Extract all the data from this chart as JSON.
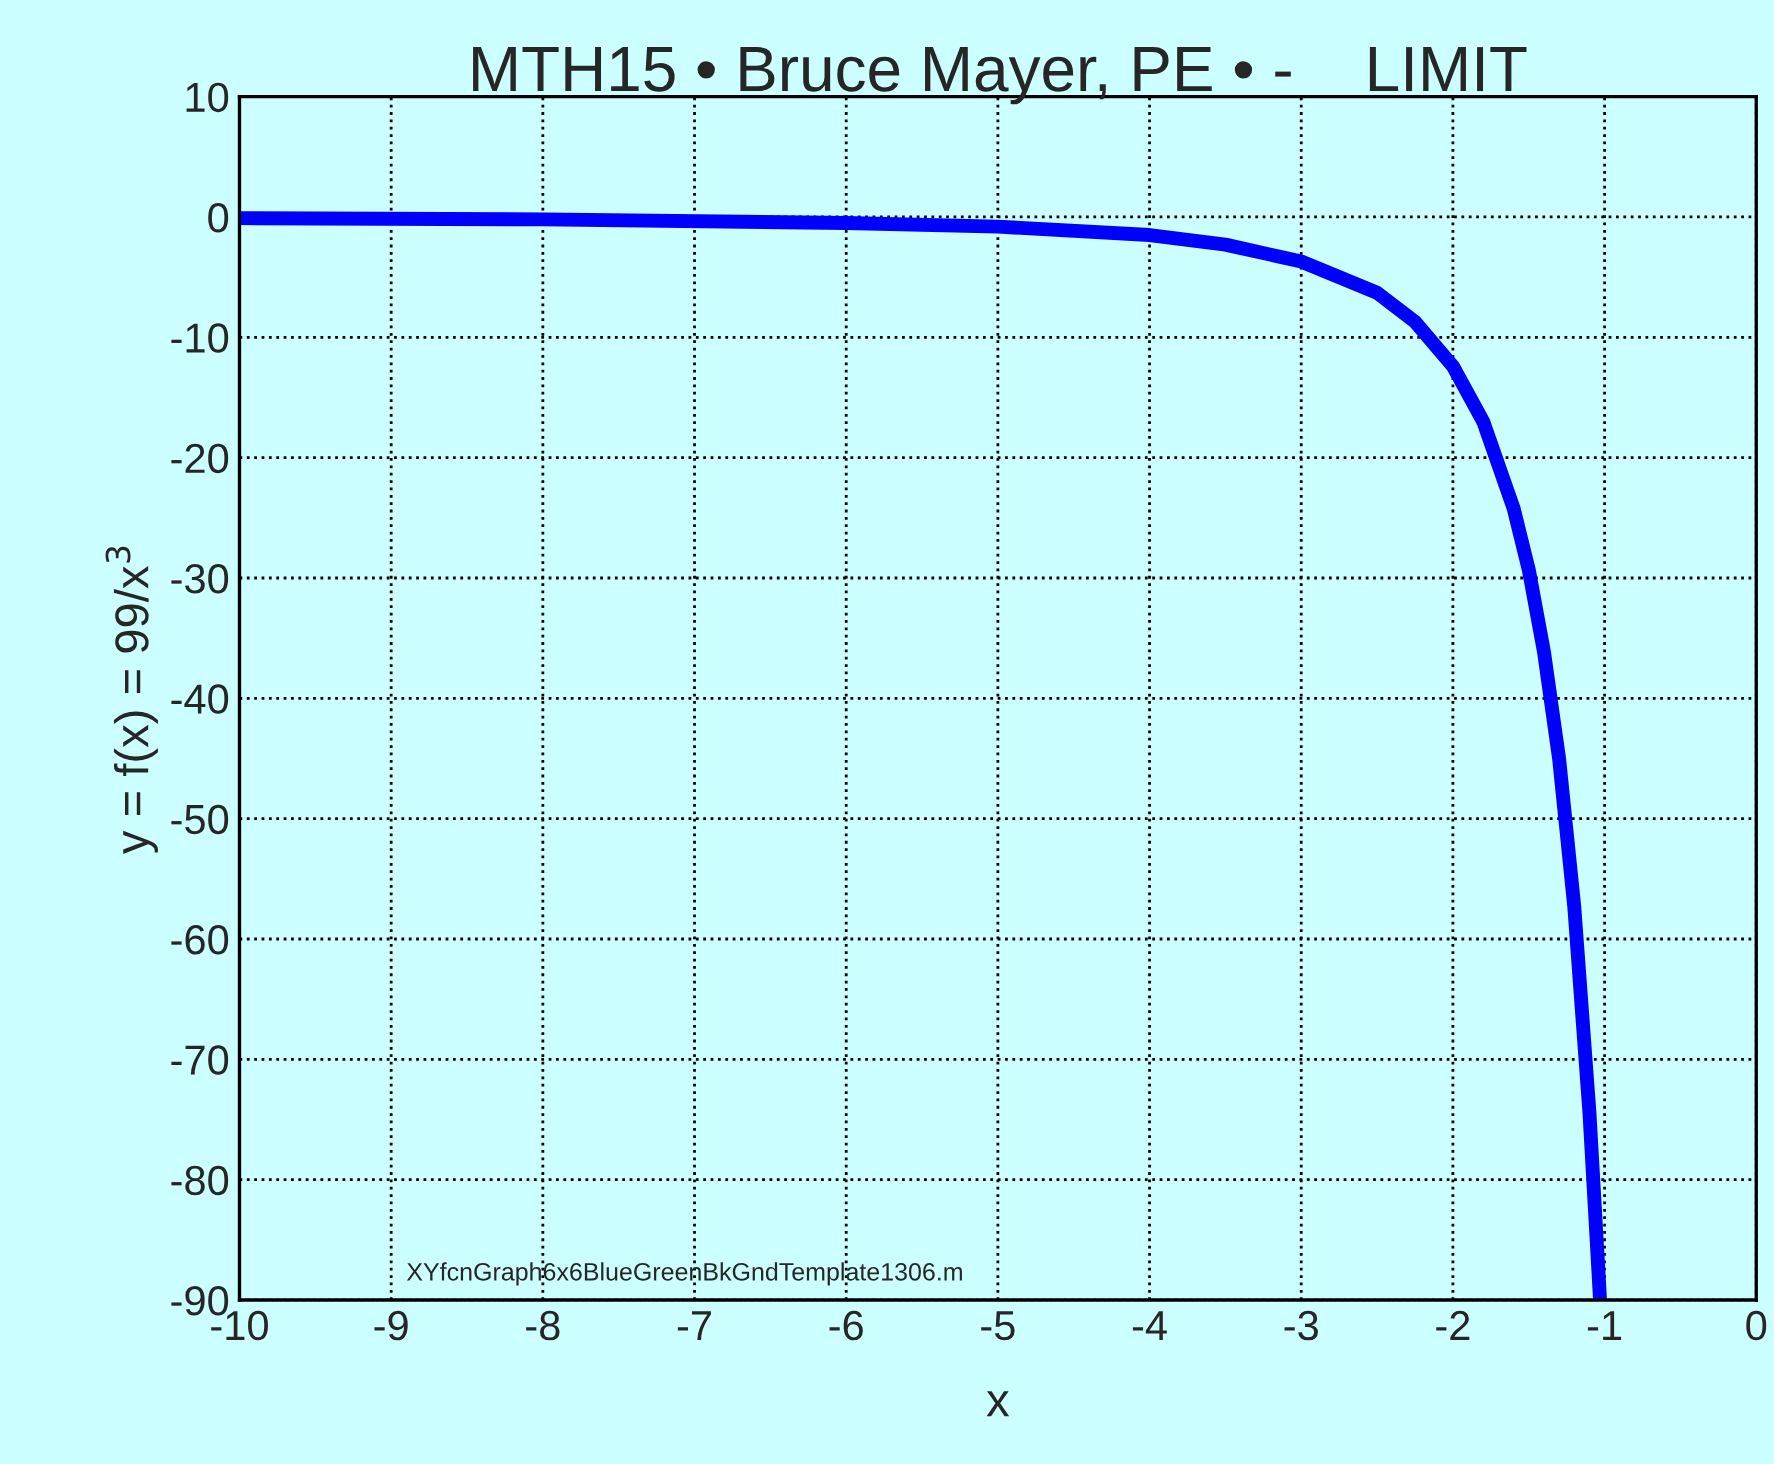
{
  "chart_data": {
    "type": "line",
    "title": "MTH15 • Bruce Mayer, PE • -    LIMIT",
    "xlabel": "x",
    "ylabel": "y = f(x) = 99/x$^{3}$",
    "annotations": [
      "XYfcnGraph6x6BlueGreenBkGndTemplate1306.m"
    ],
    "series": [
      {
        "color": "#0000ff",
        "x": [
          -10,
          -8,
          -6,
          -5,
          -4,
          -3.5,
          -3,
          -2.5,
          -2.25,
          -2,
          -1.8,
          -1.6,
          -1.5,
          -1.4,
          -1.3,
          -1.2,
          -1.1,
          -1.05,
          -1.03
        ],
        "values": [
          -0.1,
          -0.2,
          -0.5,
          -0.8,
          -1.5,
          -2.3,
          -3.7,
          -6.3,
          -8.7,
          -12.4,
          -17,
          -24.2,
          -29.3,
          -36.1,
          -45,
          -57.3,
          -74.4,
          -85.5,
          -90
        ]
      }
    ],
    "xlim": [
      -10,
      0
    ],
    "ylim": [
      -90,
      10
    ],
    "xticks": [
      -10,
      -9,
      -8,
      -7,
      -6,
      -5,
      -4,
      -3,
      -2,
      -1,
      0
    ],
    "yticks": [
      -90,
      -80,
      -70,
      -60,
      -50,
      -40,
      -30,
      -20,
      -10,
      0,
      10
    ],
    "grid": true,
    "line_style": "solid",
    "marker": "none",
    "legend": false
  }
}
